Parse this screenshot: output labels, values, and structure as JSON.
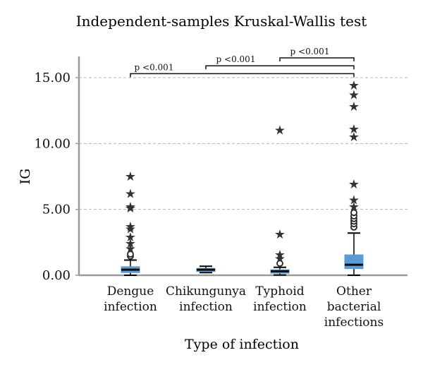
{
  "chart_data": {
    "type": "boxplot",
    "title": "Independent-samples Kruskal-Wallis test",
    "xlabel": "Type of infection",
    "ylabel": "IG",
    "ylim": [
      0,
      16
    ],
    "yticks": [
      {
        "value": 0,
        "label": "0.00"
      },
      {
        "value": 5,
        "label": "5.00"
      },
      {
        "value": 10,
        "label": "10.00"
      },
      {
        "value": 15,
        "label": "15.00"
      }
    ],
    "grid": true,
    "categories": [
      {
        "lines": [
          "Dengue",
          "infection"
        ]
      },
      {
        "lines": [
          "Chikungunya",
          "infection"
        ]
      },
      {
        "lines": [
          "Typhoid",
          "infection"
        ]
      },
      {
        "lines": [
          "Other",
          "bacterial",
          "infections"
        ]
      }
    ],
    "boxes": [
      {
        "whisker_low": 0.0,
        "q1": 0.2,
        "median": 0.42,
        "q3": 0.65,
        "whisker_high": 1.15,
        "outliers": [
          1.45,
          1.6
        ],
        "extremes": [
          2.0,
          2.4,
          2.9,
          3.5,
          3.7,
          5.1,
          5.2,
          6.2,
          7.5
        ]
      },
      {
        "whisker_low": 0.2,
        "q1": 0.28,
        "median": 0.42,
        "q3": 0.52,
        "whisker_high": 0.68,
        "outliers": [],
        "extremes": []
      },
      {
        "whisker_low": 0.02,
        "q1": 0.15,
        "median": 0.3,
        "q3": 0.42,
        "whisker_high": 0.6,
        "outliers": [
          0.9
        ],
        "extremes": [
          1.25,
          1.55,
          3.1,
          11.0
        ]
      },
      {
        "whisker_low": 0.0,
        "q1": 0.5,
        "median": 0.8,
        "q3": 1.55,
        "whisker_high": 3.2,
        "outliers": [
          3.65,
          3.9,
          4.1,
          4.3,
          4.5,
          4.75
        ],
        "extremes": [
          5.2,
          5.7,
          6.9,
          10.5,
          11.1,
          12.8,
          13.7,
          14.4
        ]
      }
    ],
    "comparisons": [
      {
        "from": 0,
        "to": 3,
        "label": "p <0.001",
        "level": 15.3
      },
      {
        "from": 1,
        "to": 3,
        "label": "p <0.001",
        "level": 15.9
      },
      {
        "from": 2,
        "to": 3,
        "label": "p <0.001",
        "level": 16.5
      }
    ],
    "colors": {
      "box": "#5b9bd5",
      "median": "#0a0a0a",
      "grid": "#b5b5b5",
      "axis": "#9a9a9a",
      "text": "#111111"
    }
  }
}
